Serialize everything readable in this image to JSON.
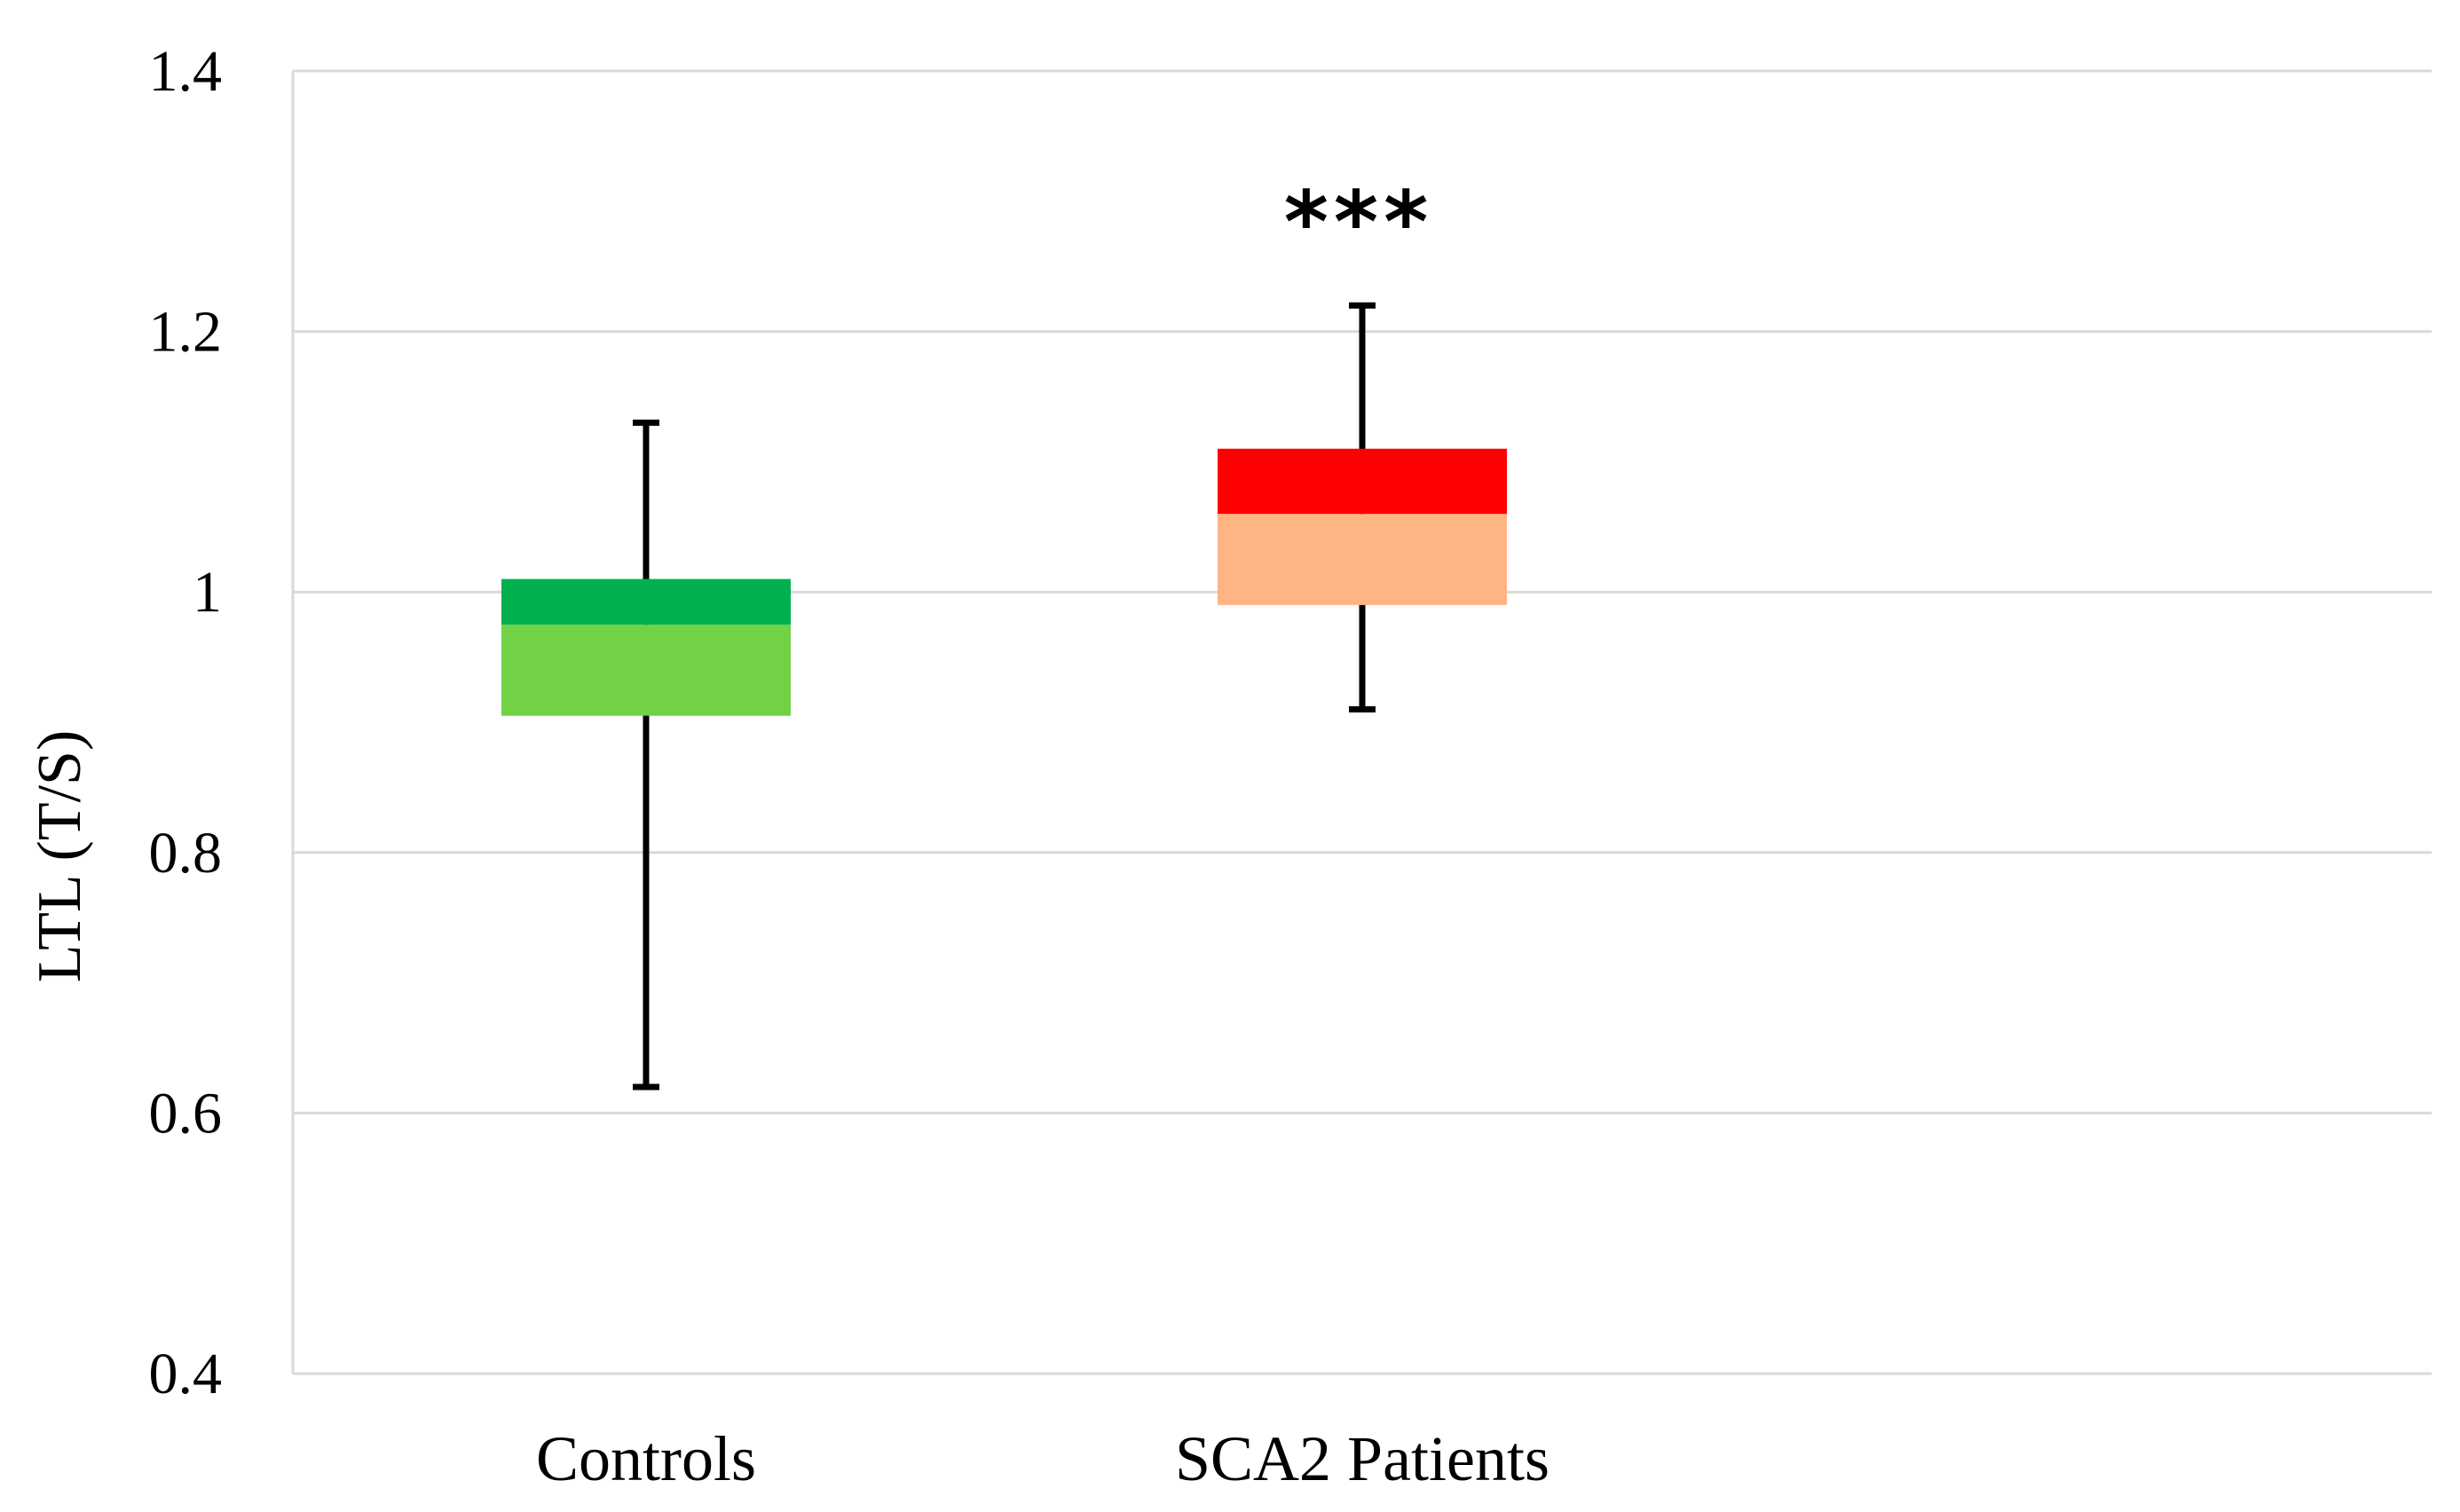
{
  "chart_data": {
    "type": "box",
    "title": "",
    "xlabel": "",
    "ylabel": "LTL (T/S)",
    "ylim": [
      0.4,
      1.4
    ],
    "yticks": [
      0.4,
      0.6,
      0.8,
      1,
      1.2,
      1.4
    ],
    "ytick_labels": [
      "0.4",
      "0.6",
      "0.8",
      "1",
      "1.2",
      "1.4"
    ],
    "grid": true,
    "categories": [
      "Controls",
      "SCA2 Patients"
    ],
    "series": [
      {
        "name": "Controls",
        "min": 0.62,
        "q1": 0.905,
        "median": 0.975,
        "q3": 1.01,
        "max": 1.13,
        "lower_color": "#70d244",
        "upper_color": "#00b04f",
        "annotation": ""
      },
      {
        "name": "SCA2 Patients",
        "min": 0.91,
        "q1": 0.99,
        "median": 1.06,
        "q3": 1.11,
        "max": 1.22,
        "lower_color": "#ffb483",
        "upper_color": "#ff0000",
        "annotation": "***"
      }
    ],
    "colors": {
      "grid": "#d9d9d9",
      "whisker": "#000000"
    }
  }
}
